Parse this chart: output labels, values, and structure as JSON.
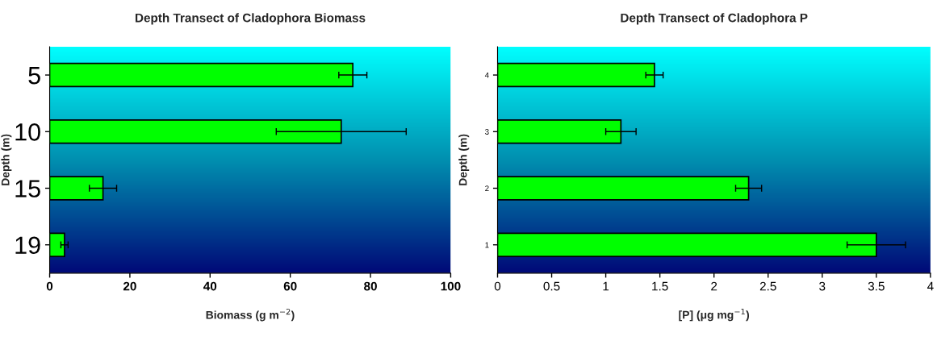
{
  "chart_data": [
    {
      "type": "bar",
      "orientation": "horizontal",
      "title": "Depth Transect of Cladophora Biomass",
      "xlabel": "Biomass (g m$^{−2}$)",
      "ylabel": "Depth (m)",
      "categories": [
        "5",
        "10",
        "15",
        "19"
      ],
      "series": [
        {
          "color": "#00ff00",
          "values": [
            75.6,
            72.7,
            13.3,
            3.7
          ],
          "errors": [
            3.5,
            16.2,
            3.4,
            0.9
          ]
        }
      ],
      "xlim": [
        0,
        100
      ],
      "xticks": [
        0,
        20,
        40,
        60,
        80,
        100
      ],
      "grid": false,
      "legend": false
    },
    {
      "type": "bar",
      "orientation": "horizontal",
      "title": "Depth Transect of Cladophora P",
      "xlabel": "[P] (μg mg$^{−1}$)",
      "ylabel": "Depth (m)",
      "categories": [
        "4",
        "3",
        "2",
        "1"
      ],
      "series": [
        {
          "color": "#00ff00",
          "values": [
            1.45,
            1.14,
            2.32,
            3.5
          ],
          "errors": [
            0.08,
            0.14,
            0.12,
            0.27
          ]
        }
      ],
      "xlim": [
        0,
        4
      ],
      "xticks": [
        0,
        0.5,
        1,
        1.5,
        2,
        2.5,
        3,
        3.5,
        4
      ],
      "grid": false,
      "legend": false
    }
  ]
}
